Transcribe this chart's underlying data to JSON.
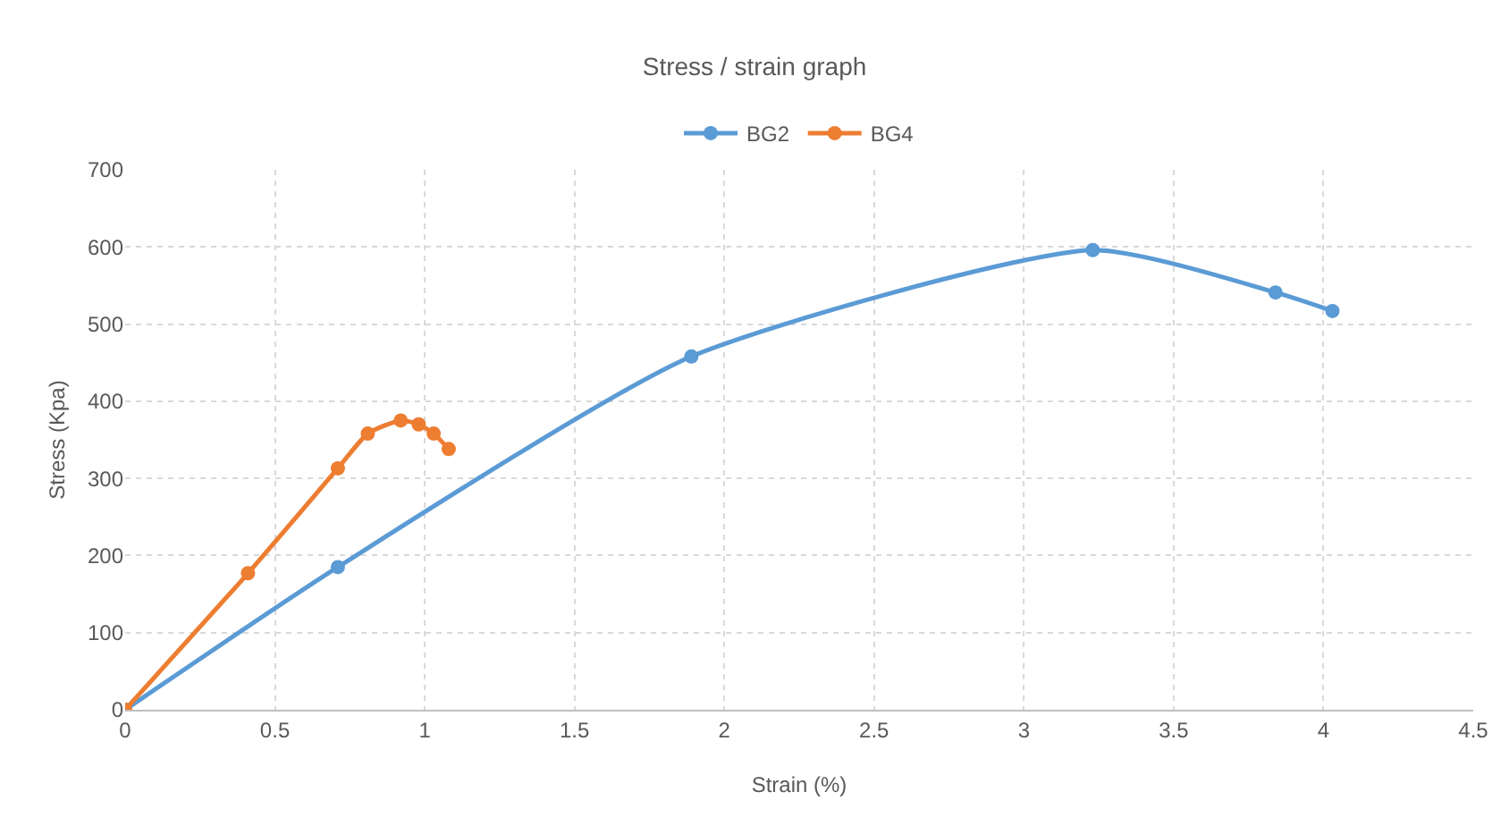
{
  "chart_data": {
    "type": "line",
    "title": "Stress / strain graph",
    "xlabel": "Strain (%)",
    "ylabel": "Stress (Kpa)",
    "series": [
      {
        "name": "BG2",
        "color": "#5b9bd5",
        "x": [
          0,
          0.71,
          1.89,
          3.23,
          3.84,
          4.03
        ],
        "values": [
          0,
          185,
          458,
          596,
          541,
          517
        ]
      },
      {
        "name": "BG4",
        "color": "#ed7d31",
        "x": [
          0,
          0.41,
          0.71,
          0.81,
          0.92,
          0.98,
          1.03,
          1.08
        ],
        "values": [
          0,
          177,
          313,
          358,
          375,
          370,
          358,
          338
        ]
      }
    ],
    "xlim": [
      0,
      4.5
    ],
    "xticks": [
      0,
      {
        "value": 0.5,
        "label": "0.5"
      },
      1,
      {
        "value": 1.5,
        "label": "1.5"
      },
      2,
      {
        "value": 2.5,
        "label": "2.5"
      },
      3,
      {
        "value": 3.5,
        "label": "3.5"
      },
      4,
      {
        "value": 4.5,
        "label": "4.5"
      }
    ],
    "ylim": [
      0,
      700
    ],
    "yticks": [
      0,
      100,
      200,
      300,
      400,
      500,
      600,
      700
    ],
    "grid": true,
    "legend": "top",
    "marker": "circle",
    "line_style": "solid"
  }
}
